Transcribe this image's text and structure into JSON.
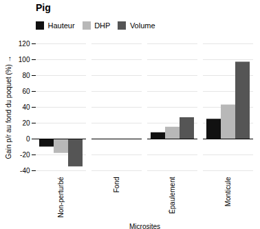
{
  "chart_data": {
    "type": "bar",
    "title": "Pig",
    "categories": [
      "Non-perturbé",
      "Fond",
      "Épaulement",
      "Monticule"
    ],
    "series": [
      {
        "name": "Hauteur",
        "color": "#111111",
        "values": [
          -10,
          0,
          8,
          25
        ]
      },
      {
        "name": "DHP",
        "color": "#b8b8b8",
        "values": [
          -18,
          0,
          15,
          43
        ]
      },
      {
        "name": "Volume",
        "color": "#555555",
        "values": [
          -35,
          0,
          27,
          97
        ]
      }
    ],
    "xlabel": "Microsites",
    "ylabel": "Gain p/r au fond du poquet (%)",
    "ylim": [
      -40,
      120
    ],
    "yticks": [
      -40,
      -20,
      0,
      20,
      40,
      60,
      80,
      100,
      120
    ],
    "grid": true,
    "legend": "upper left"
  }
}
